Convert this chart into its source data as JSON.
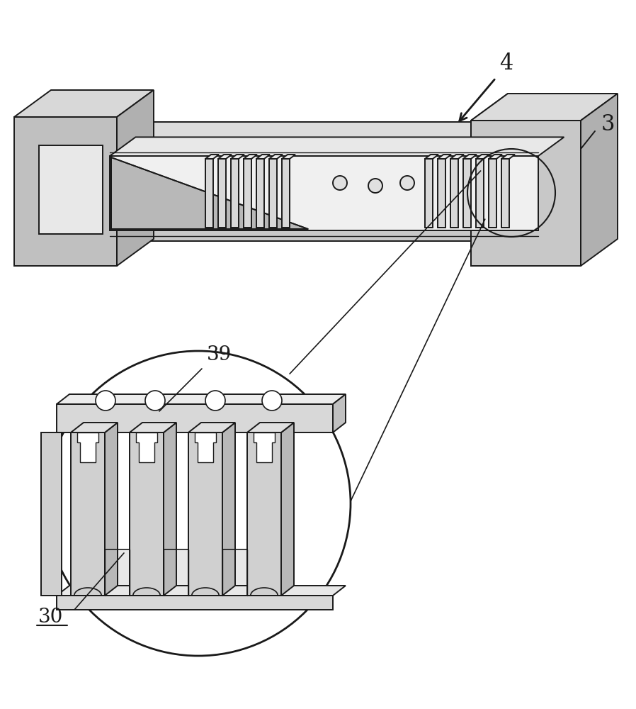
{
  "bg_color": "#ffffff",
  "line_color": "#1a1a1a",
  "lw": 1.4,
  "label_4": "4",
  "label_3": "3",
  "label_39": "39",
  "label_30": "30",
  "label_fontsize": 20,
  "fig_width": 8.98,
  "fig_height": 10.0,
  "dpi": 100,
  "gray_dark": "#b0b0b0",
  "gray_mid": "#c8c8c8",
  "gray_light": "#e0e0e0",
  "gray_lighter": "#eeeeee",
  "gray_white": "#f5f5f5"
}
